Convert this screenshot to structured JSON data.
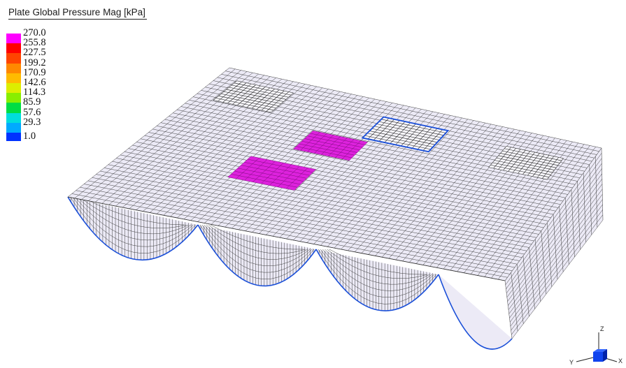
{
  "legend": {
    "title": "Plate Global Pressure Mag [kPa]",
    "ticks": [
      "270.0",
      "255.8",
      "227.5",
      "199.2",
      "170.9",
      "142.6",
      "114.3",
      "85.9",
      "57.6",
      "29.3",
      "1.0"
    ],
    "colors": [
      "#ff00ff",
      "#ff0000",
      "#ff4400",
      "#ff8800",
      "#ffbb00",
      "#ddee00",
      "#88ee00",
      "#00dd44",
      "#00dddd",
      "#00aaff",
      "#0033ff"
    ]
  },
  "model": {
    "mesh_color": "#eceaf6",
    "line_color": "#2a2a2a",
    "load_patch_color": "#dd22dd",
    "edge_color": "#1a4fd8"
  },
  "axes": {
    "z": "Z",
    "y": "Y",
    "x": "X"
  }
}
